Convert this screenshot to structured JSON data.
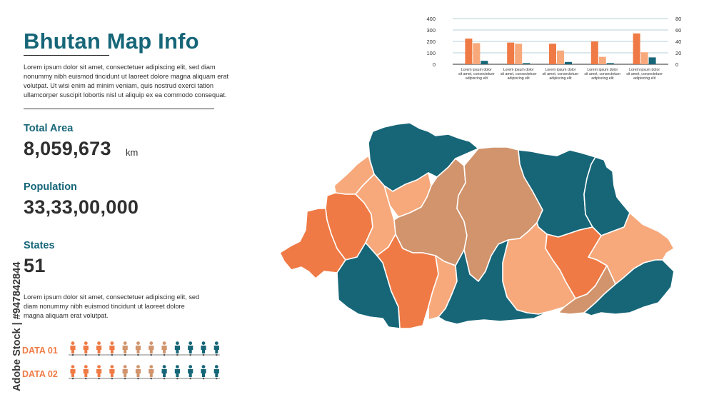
{
  "header": {
    "title": "Bhutan Map Info",
    "intro": "Lorem ipsum dolor sit amet, consectetuer adipiscing elit, sed diam nonummy nibh euismod tincidunt ut laoreet dolore magna aliquam erat volutpat. Ut wisi enim ad minim veniam, quis nostrud exerci tation ullamcorper suscipit lobortis nisl ut aliquip ex ea commodo consequat."
  },
  "stats": {
    "area_label": "Total Area",
    "area_value": "8,059,673",
    "area_unit": "km",
    "population_label": "Population",
    "population_value": "33,33,00,000",
    "states_label": "States",
    "states_value": "51"
  },
  "description": "Lorem ipsum dolor sit amet, consectetuer adipiscing elit, sed diam nonummy nibh euismod tincidunt ut laoreet dolore magna aliquam erat volutpat.",
  "data_rows": [
    {
      "label": "DATA 01",
      "figures": [
        "orange",
        "orange",
        "orange",
        "orange",
        "tan",
        "tan",
        "tan",
        "tan",
        "teal",
        "teal",
        "teal",
        "teal"
      ]
    },
    {
      "label": "DATA 02",
      "figures": [
        "orange",
        "orange",
        "orange",
        "orange",
        "tan",
        "tan",
        "tan",
        "teal",
        "teal",
        "teal",
        "teal",
        "teal"
      ]
    }
  ],
  "watermark": "Adobe Stock | #947842844",
  "colors": {
    "teal": "#166678",
    "orange": "#ef7a45",
    "peach": "#f7a97c",
    "tan": "#d1946c",
    "text": "#2f2f2f"
  },
  "chart_data": {
    "type": "bar",
    "categories": [
      "Lorem ipsum dolor sit amet, consectetuer adipiscing elit",
      "Lorem ipsum dolor sit amet, consectetuer adipiscing elit",
      "Lorem ipsum dolor sit amet, consectetuer adipiscing elit",
      "Lorem ipsum dolor sit amet, consectetuer adipiscing elit",
      "Lorem ipsum dolor sit amet, consectetuer adipiscing elit"
    ],
    "series": [
      {
        "values": [
          225,
          190,
          180,
          200,
          270
        ],
        "color": "#ef7a45",
        "axis": "left"
      },
      {
        "values": [
          185,
          180,
          120,
          65,
          105
        ],
        "color": "#f7a97c",
        "axis": "left"
      },
      {
        "values": [
          30,
          10,
          20,
          10,
          60
        ],
        "color": "#166678",
        "axis": "left"
      }
    ],
    "left_ticks": [
      0,
      100,
      200,
      300,
      400
    ],
    "right_ticks": [
      0,
      20,
      40,
      60,
      80
    ],
    "ylim": [
      0,
      400
    ],
    "y2lim": [
      0,
      80
    ],
    "grid": true,
    "legend": "none"
  }
}
